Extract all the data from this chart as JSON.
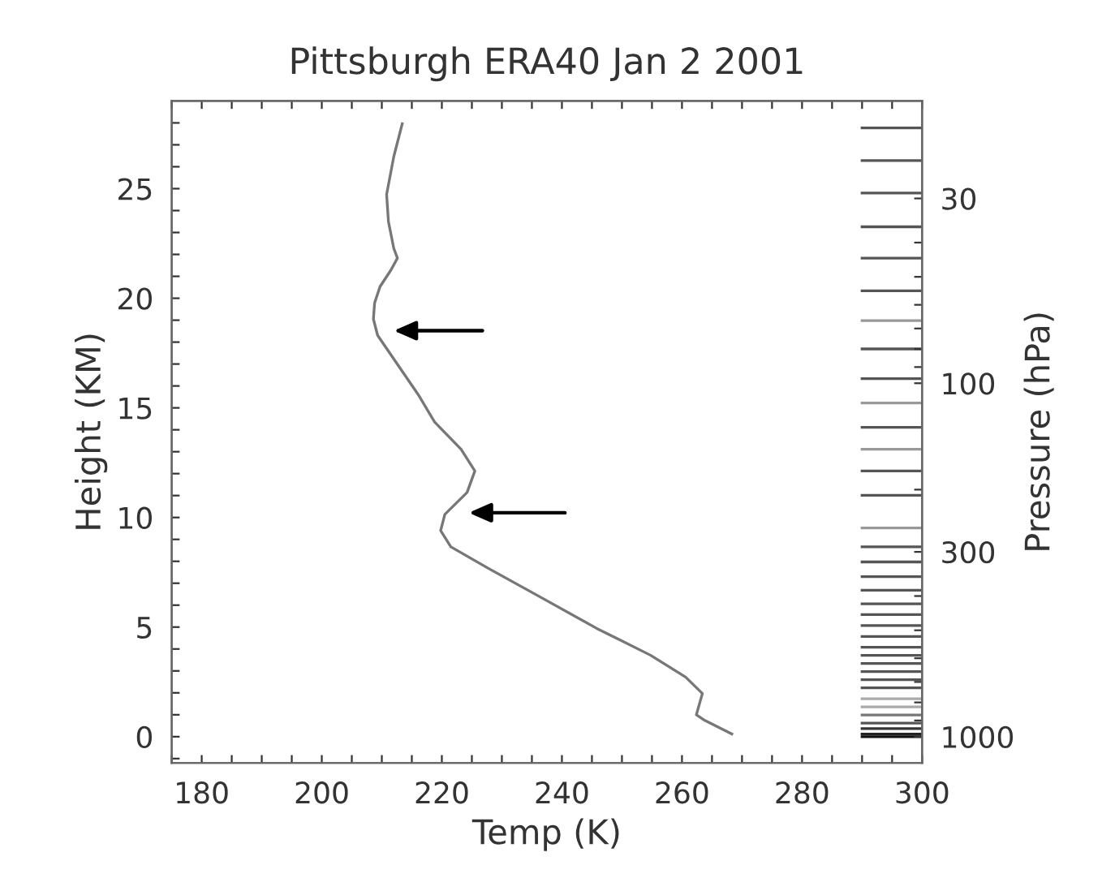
{
  "chart_data": {
    "type": "line",
    "title": "Pittsburgh ERA40 Jan 2 2001",
    "xlabel": "Temp (K)",
    "ylabel": "Height (KM)",
    "y2label": "Pressure (hPa)",
    "xlim": [
      175,
      300
    ],
    "ylim": [
      -1.2,
      29
    ],
    "xticks": [
      {
        "value": 175,
        "label": null
      },
      180,
      {
        "value": 185,
        "label": null
      },
      {
        "value": 190,
        "label": null
      },
      {
        "value": 195,
        "label": null
      },
      200,
      {
        "value": 205,
        "label": null
      },
      {
        "value": 210,
        "label": null
      },
      {
        "value": 215,
        "label": null
      },
      220,
      {
        "value": 225,
        "label": null
      },
      {
        "value": 230,
        "label": null
      },
      {
        "value": 235,
        "label": null
      },
      240,
      {
        "value": 245,
        "label": null
      },
      {
        "value": 250,
        "label": null
      },
      {
        "value": 255,
        "label": null
      },
      260,
      {
        "value": 265,
        "label": null
      },
      {
        "value": 270,
        "label": null
      },
      {
        "value": 275,
        "label": null
      },
      280,
      {
        "value": 285,
        "label": null
      },
      {
        "value": 290,
        "label": null
      },
      {
        "value": 295,
        "label": null
      },
      300
    ],
    "yticks": [
      {
        "value": -1,
        "label": null
      },
      0,
      {
        "value": 1,
        "label": null
      },
      {
        "value": 2,
        "label": null
      },
      {
        "value": 3,
        "label": null
      },
      {
        "value": 4,
        "label": null
      },
      5,
      {
        "value": 6,
        "label": null
      },
      {
        "value": 7,
        "label": null
      },
      {
        "value": 8,
        "label": null
      },
      {
        "value": 9,
        "label": null
      },
      10,
      {
        "value": 11,
        "label": null
      },
      {
        "value": 12,
        "label": null
      },
      {
        "value": 13,
        "label": null
      },
      {
        "value": 14,
        "label": null
      },
      15,
      {
        "value": 16,
        "label": null
      },
      {
        "value": 17,
        "label": null
      },
      {
        "value": 18,
        "label": null
      },
      {
        "value": 19,
        "label": null
      },
      20,
      {
        "value": 21,
        "label": null
      },
      {
        "value": 22,
        "label": null
      },
      {
        "value": 23,
        "label": null
      },
      {
        "value": 24,
        "label": null
      },
      25,
      {
        "value": 26,
        "label": null
      },
      {
        "value": 27,
        "label": null
      },
      {
        "value": 28,
        "label": null
      }
    ],
    "y2lim": [
      1187,
      15.9
    ],
    "log": "y2",
    "y2ticks": [
      30,
      {
        "value": 40,
        "label": null
      },
      {
        "value": 50,
        "label": null
      },
      {
        "value": 60,
        "label": null
      },
      {
        "value": 70,
        "label": null
      },
      {
        "value": 80,
        "label": null
      },
      {
        "value": 90,
        "label": null
      },
      100,
      {
        "value": 200,
        "label": null
      },
      300,
      {
        "value": 400,
        "label": null
      },
      {
        "value": 500,
        "label": null
      },
      {
        "value": 600,
        "label": null
      },
      {
        "value": 700,
        "label": null
      },
      {
        "value": 800,
        "label": null
      },
      {
        "value": 900,
        "label": null
      },
      1000
    ],
    "grid": false,
    "legend": false,
    "series": [
      {
        "color": "#777777",
        "x": [
          213.4,
          212.0,
          210.8,
          211.1,
          212.0,
          212.6,
          211.5,
          209.7,
          208.8,
          208.6,
          209.3,
          212.4,
          216.1,
          218.8,
          223.2,
          225.5,
          224.2,
          220.5,
          219.8,
          221.5,
          227.8,
          236.8,
          245.8,
          254.8,
          260.6,
          263.4,
          262.4,
          263.8,
          268.3
        ],
        "values": [
          27.96,
          26.47,
          24.74,
          23.5,
          22.27,
          21.83,
          21.28,
          20.53,
          19.79,
          19.05,
          18.31,
          17.07,
          15.59,
          14.35,
          13.11,
          12.12,
          11.14,
          10.14,
          9.4,
          8.66,
          7.67,
          6.31,
          4.94,
          3.71,
          2.72,
          1.97,
          1.0,
          0.74,
          0.12
        ]
      },
      {
        "color": "#555555",
        "x": [
          290,
          300
        ],
        "values": [
          27.77,
          27.77
        ]
      },
      {
        "color": "#555555",
        "x": [
          290,
          300
        ],
        "values": [
          26.28,
          26.28
        ]
      },
      {
        "color": "#555555",
        "x": [
          290,
          300
        ],
        "values": [
          24.8,
          24.8
        ]
      },
      {
        "color": "#555555",
        "x": [
          290,
          300
        ],
        "values": [
          23.26,
          23.26
        ]
      },
      {
        "color": "#555555",
        "x": [
          290,
          300
        ],
        "values": [
          21.83,
          21.83
        ]
      },
      {
        "color": "#555555",
        "x": [
          290,
          300
        ],
        "values": [
          20.34,
          20.34
        ]
      },
      {
        "color": "#999999",
        "x": [
          290,
          300
        ],
        "values": [
          18.98,
          18.98
        ]
      },
      {
        "color": "#555555",
        "x": [
          290,
          300
        ],
        "values": [
          17.69,
          17.69
        ]
      },
      {
        "color": "#555555",
        "x": [
          290,
          300
        ],
        "values": [
          16.33,
          16.33
        ]
      },
      {
        "color": "#999999",
        "x": [
          290,
          300
        ],
        "values": [
          15.22,
          15.22
        ]
      },
      {
        "color": "#555555",
        "x": [
          290,
          300
        ],
        "values": [
          14.11,
          14.11
        ]
      },
      {
        "color": "#999999",
        "x": [
          290,
          300
        ],
        "values": [
          13.11,
          13.11
        ]
      },
      {
        "color": "#555555",
        "x": [
          290,
          300
        ],
        "values": [
          12.12,
          12.12
        ]
      },
      {
        "color": "#555555",
        "x": [
          290,
          300
        ],
        "values": [
          11.01,
          11.01
        ]
      },
      {
        "color": "#999999",
        "x": [
          290,
          300
        ],
        "values": [
          9.52,
          9.52
        ]
      },
      {
        "color": "#555555",
        "x": [
          290,
          300
        ],
        "values": [
          8.66,
          8.66
        ]
      },
      {
        "color": "#555555",
        "x": [
          290,
          300
        ],
        "values": [
          7.97,
          7.97
        ]
      },
      {
        "color": "#555555",
        "x": [
          290,
          300
        ],
        "values": [
          7.3,
          7.3
        ]
      },
      {
        "color": "#555555",
        "x": [
          290,
          300
        ],
        "values": [
          6.68,
          6.68
        ]
      },
      {
        "color": "#555555",
        "x": [
          290,
          300
        ],
        "values": [
          6.06,
          6.06
        ]
      },
      {
        "color": "#555555",
        "x": [
          290,
          300
        ],
        "values": [
          5.57,
          5.57
        ]
      },
      {
        "color": "#555555",
        "x": [
          290,
          300
        ],
        "values": [
          5.07,
          5.07
        ]
      },
      {
        "color": "#555555",
        "x": [
          290,
          300
        ],
        "values": [
          4.57,
          4.57
        ]
      },
      {
        "color": "#555555",
        "x": [
          290,
          300
        ],
        "values": [
          4.08,
          4.08
        ]
      },
      {
        "color": "#555555",
        "x": [
          290,
          300
        ],
        "values": [
          3.71,
          3.71
        ]
      },
      {
        "color": "#555555",
        "x": [
          290,
          300
        ],
        "values": [
          3.34,
          3.34
        ]
      },
      {
        "color": "#555555",
        "x": [
          290,
          300
        ],
        "values": [
          2.97,
          2.97
        ]
      },
      {
        "color": "#555555",
        "x": [
          290,
          300
        ],
        "values": [
          2.6,
          2.6
        ]
      },
      {
        "color": "#555555",
        "x": [
          290,
          300
        ],
        "values": [
          2.23,
          2.23
        ]
      },
      {
        "color": "#aaaaaa",
        "x": [
          290,
          300
        ],
        "values": [
          1.73,
          1.73
        ]
      },
      {
        "color": "#aaaaaa",
        "x": [
          290,
          300
        ],
        "values": [
          1.36,
          1.36
        ]
      },
      {
        "color": "#777777",
        "x": [
          290,
          300
        ],
        "values": [
          0.99,
          0.99
        ]
      },
      {
        "color": "#555555",
        "x": [
          290,
          300
        ],
        "values": [
          0.62,
          0.62
        ]
      },
      {
        "color": "#333333",
        "x": [
          290,
          300
        ],
        "values": [
          0.37,
          0.37
        ]
      },
      {
        "color": "#222222",
        "x": [
          290,
          300
        ],
        "values": [
          0.12,
          0.12
        ]
      },
      {
        "color": "#111111",
        "x": [
          290,
          300
        ],
        "values": [
          0.0,
          0.0
        ]
      }
    ]
  }
}
